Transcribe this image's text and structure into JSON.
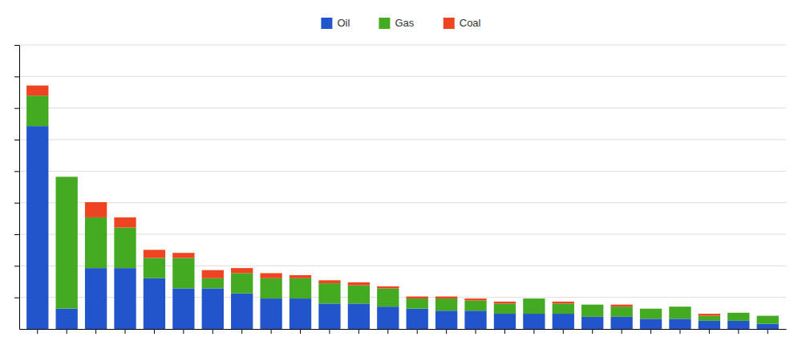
{
  "chart_data": {
    "type": "bar",
    "stacked": true,
    "categories": [
      null,
      null,
      null,
      null,
      null,
      null,
      null,
      null,
      null,
      null,
      null,
      null,
      null,
      null,
      null,
      null,
      null,
      null,
      null,
      null,
      null,
      null,
      null,
      null,
      null,
      null
    ],
    "series": [
      {
        "name": "Oil",
        "color": "#2255CC",
        "values": [
          200,
          20,
          60,
          60,
          50,
          40,
          40,
          35,
          30,
          30,
          25,
          25,
          22,
          20,
          18,
          18,
          15,
          15,
          15,
          12,
          12,
          10,
          10,
          8,
          8,
          5
        ]
      },
      {
        "name": "Gas",
        "color": "#44AA22",
        "values": [
          30,
          130,
          50,
          40,
          20,
          30,
          10,
          20,
          20,
          20,
          20,
          18,
          18,
          10,
          12,
          10,
          10,
          15,
          10,
          12,
          10,
          10,
          12,
          5,
          8,
          8
        ]
      },
      {
        "name": "Coal",
        "color": "#EE4422",
        "values": [
          10,
          0,
          15,
          10,
          8,
          5,
          8,
          5,
          5,
          3,
          3,
          3,
          2,
          2,
          2,
          2,
          2,
          0,
          2,
          0,
          2,
          0,
          0,
          2,
          0,
          0
        ]
      }
    ],
    "ylim": [
      0,
      280
    ],
    "yticks": [
      31.11111111111111,
      62.22222222222222,
      93.33333333333333,
      124.44444444444444,
      155.55555555555554,
      186.66666666666666,
      217.77777777777777,
      248.88888888888889,
      280
    ],
    "grid": true,
    "tick_labels": false,
    "legend": "top"
  }
}
